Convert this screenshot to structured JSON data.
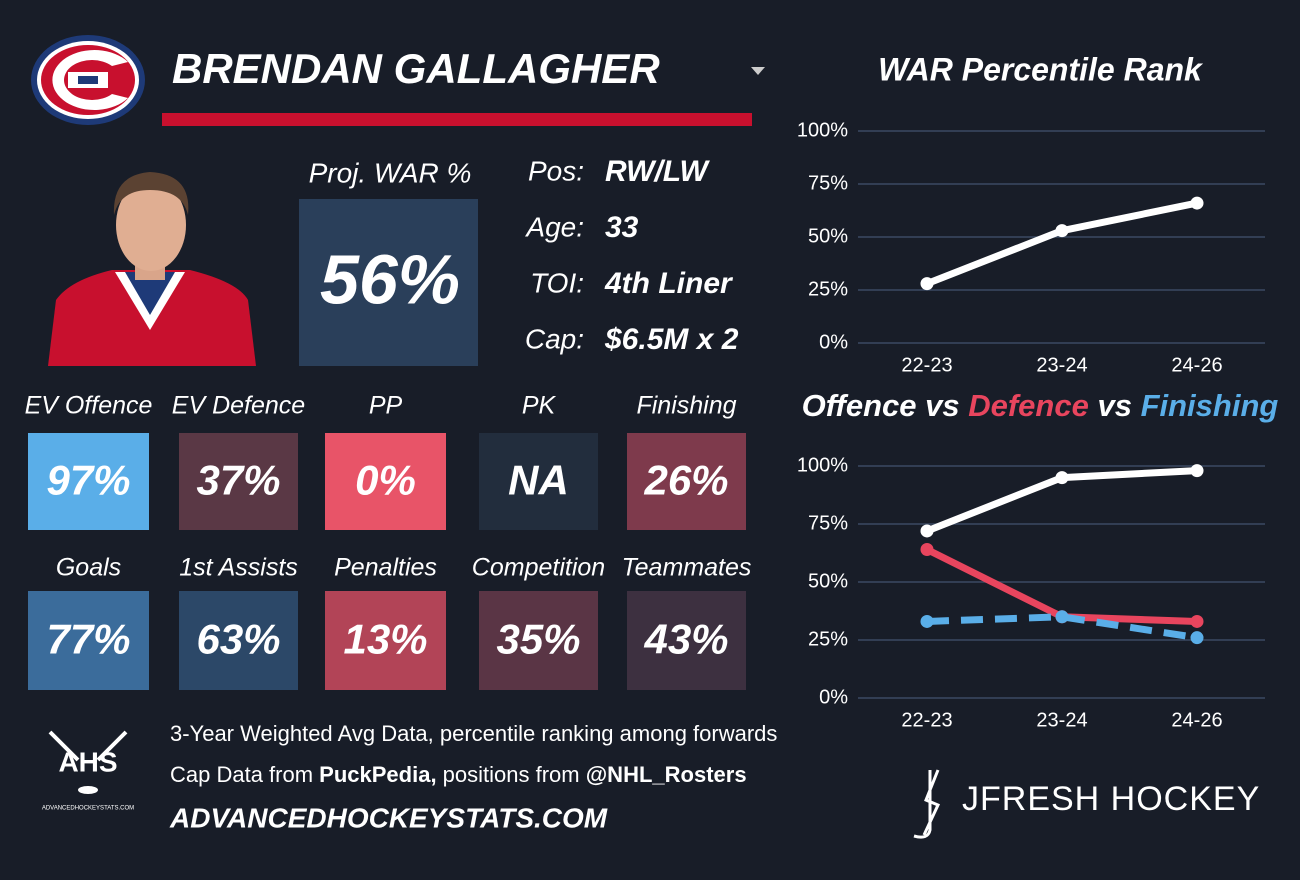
{
  "header": {
    "name": "BRENDAN GALLAGHER"
  },
  "proj": {
    "label": "Proj. WAR %",
    "value": "56%",
    "color": "#2a3f5a"
  },
  "info": [
    {
      "label": "Pos:",
      "value": "RW/LW"
    },
    {
      "label": "Age:",
      "value": "33"
    },
    {
      "label": "TOI:",
      "value": "4th Liner"
    },
    {
      "label": "Cap:",
      "value": "$6.5M x 2"
    }
  ],
  "tiles": [
    [
      {
        "label": "EV Offence",
        "value": "97%",
        "color": "#5aaee8"
      },
      {
        "label": "EV Defence",
        "value": "37%",
        "color": "#5a3845"
      },
      {
        "label": "PP",
        "value": "0%",
        "color": "#e85468"
      },
      {
        "label": "PK",
        "value": "NA",
        "color": "#222d3d"
      },
      {
        "label": "Finishing",
        "value": "26%",
        "color": "#7e3a4c"
      }
    ],
    [
      {
        "label": "Goals",
        "value": "77%",
        "color": "#3b6c9b"
      },
      {
        "label": "1st Assists",
        "value": "63%",
        "color": "#2c4868"
      },
      {
        "label": "Penalties",
        "value": "13%",
        "color": "#b24457"
      },
      {
        "label": "Competition",
        "value": "35%",
        "color": "#5a3545"
      },
      {
        "label": "Teammates",
        "value": "43%",
        "color": "#3d3040"
      }
    ]
  ],
  "footer": {
    "logo_text": "AHS",
    "logo_sub": "ADVANCEDHOCKEYSTATS.COM",
    "line1": "3-Year Weighted Avg Data, percentile ranking among forwards",
    "line2": [
      "Cap Data from ",
      "PuckPedia,",
      " positions from ",
      "@NHL_Rosters"
    ],
    "site": "ADVANCEDHOCKEYSTATS.COM",
    "brand": "JFRESH HOCKEY"
  },
  "chart_data": [
    {
      "type": "line",
      "title": "WAR Percentile Rank",
      "categories": [
        "22-23",
        "23-24",
        "24-26"
      ],
      "series": [
        {
          "color": "#ffffff",
          "values": [
            28,
            53,
            66
          ]
        }
      ],
      "ylim": [
        0,
        100
      ],
      "yticks": [
        {
          "value": 0,
          "label": "0%"
        },
        {
          "value": 25,
          "label": "25%"
        },
        {
          "value": 50,
          "label": "50%"
        },
        {
          "value": 75,
          "label": "75%"
        },
        {
          "value": 100,
          "label": "100%"
        }
      ],
      "grid": true
    },
    {
      "type": "line",
      "title_joiner": "vs",
      "categories": [
        "22-23",
        "23-24",
        "24-26"
      ],
      "series": [
        {
          "name": "Offence",
          "color": "#ffffff",
          "values": [
            72,
            95,
            98
          ]
        },
        {
          "name": "Defence",
          "color": "#e8455e",
          "values": [
            64,
            35,
            33
          ]
        },
        {
          "name": "Finishing",
          "color": "#5aaee8",
          "dashed": true,
          "values": [
            33,
            35,
            26
          ]
        }
      ],
      "ylim": [
        0,
        100
      ],
      "yticks": [
        {
          "value": 0,
          "label": "0%"
        },
        {
          "value": 25,
          "label": "25%"
        },
        {
          "value": 50,
          "label": "50%"
        },
        {
          "value": 75,
          "label": "75%"
        },
        {
          "value": 100,
          "label": "100%"
        }
      ],
      "grid": true
    }
  ]
}
